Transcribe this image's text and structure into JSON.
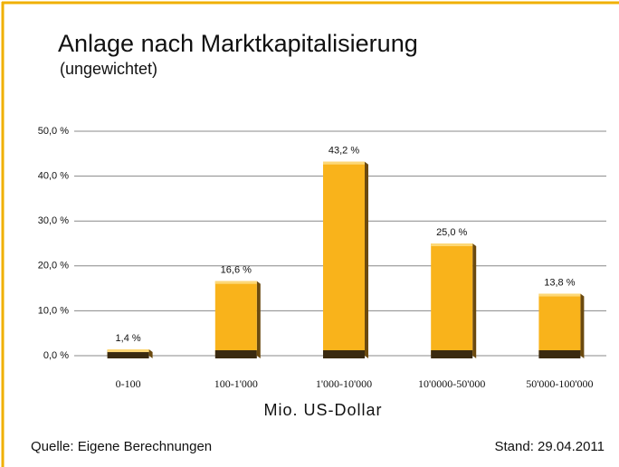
{
  "chart_data": {
    "type": "bar",
    "title": "Anlage nach Marktkapitalisierung",
    "subtitle": "(ungewichtet)",
    "x_label": "Mio. US-Dollar",
    "categories": [
      "0-100",
      "100-1'000",
      "1'000-10'000",
      "10'0000-50'000",
      "50'000-100'000"
    ],
    "values": [
      1.4,
      16.6,
      43.2,
      25.0,
      13.8
    ],
    "value_labels": [
      "1,4 %",
      "16,6 %",
      "43,2 %",
      "25,0 %",
      "13,8 %"
    ],
    "color": "#f9b31b",
    "ylim": [
      0,
      50
    ],
    "yticks": [
      {
        "value": 0,
        "label": "0,0 %"
      },
      {
        "value": 10,
        "label": "10,0 %"
      },
      {
        "value": 20,
        "label": "20,0 %"
      },
      {
        "value": 30,
        "label": "30,0 %"
      },
      {
        "value": 40,
        "label": "40,0 %"
      },
      {
        "value": 50,
        "label": "50,0 %"
      }
    ],
    "grid": true,
    "source": "Quelle: Eigene Berechnungen",
    "date": "Stand: 29.04.2011"
  }
}
